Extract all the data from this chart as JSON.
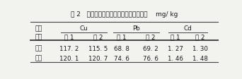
{
  "title": "表 2   两种酸消解体系与两种消解方式比较    mg/ kg",
  "col_groups": [
    "Cu",
    "Pb",
    "Cd"
  ],
  "row_header1": "消解",
  "row_header2": "方式",
  "sub_headers": [
    "酸 1",
    "酸 2",
    "酸 1",
    "酸 2",
    "酸 1",
    "酸 2"
  ],
  "row_labels": [
    "敞口",
    "高压"
  ],
  "data": [
    [
      117.2,
      115.5,
      68.8,
      69.2,
      1.27,
      1.3
    ],
    [
      120.1,
      120.7,
      74.6,
      76.6,
      1.46,
      1.48
    ]
  ],
  "data_str_vals": [
    [
      "117. 2",
      "115. 5",
      "68. 8",
      "69. 2",
      "1. 27",
      "1. 30"
    ],
    [
      "120. 1",
      "120. 7",
      "74. 6",
      "76. 6",
      "1. 46",
      "1. 48"
    ]
  ],
  "background_color": "#f2f2ee",
  "text_color": "#1a1a1a",
  "line_color": "#444444"
}
